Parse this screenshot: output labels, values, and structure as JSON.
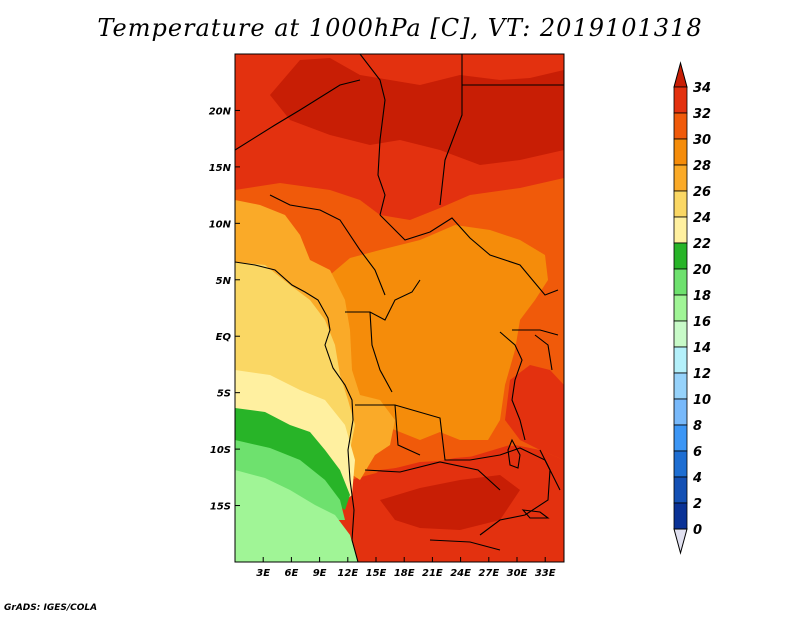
{
  "title": "Temperature at 1000hPa [C], VT: 2019101318",
  "credit": "GrADS: IGES/COLA",
  "map": {
    "lon_range": [
      0,
      35
    ],
    "lat_range": [
      -20,
      25
    ],
    "x_ticks": [
      "3E",
      "6E",
      "9E",
      "12E",
      "15E",
      "18E",
      "21E",
      "24E",
      "27E",
      "30E",
      "33E"
    ],
    "y_ticks": [
      "20N",
      "15N",
      "10N",
      "5N",
      "EQ",
      "5S",
      "10S",
      "15S"
    ]
  },
  "colorbar": {
    "labels": [
      "34",
      "32",
      "30",
      "28",
      "26",
      "24",
      "22",
      "20",
      "18",
      "16",
      "14",
      "12",
      "10",
      "8",
      "6",
      "4",
      "2",
      "0"
    ],
    "colors": {
      "above34": "#c81e05",
      "32-34": "#e3310f",
      "30-32": "#f05a0a",
      "28-30": "#f58c0a",
      "26-28": "#faaa28",
      "24-26": "#fad764",
      "22-24": "#fff0a0",
      "20-22": "#28b428",
      "18-20": "#6ee16e",
      "16-18": "#a0f596",
      "14-16": "#c8fac8",
      "12-14": "#b4f0fa",
      "10-12": "#96d2fa",
      "8-10": "#78b9fa",
      "6-8": "#3c96f5",
      "4-6": "#1e6ed2",
      "2-4": "#1450b4",
      "0-2": "#0a3296",
      "below0": "#001464",
      "under": "#e0e0f0"
    }
  }
}
